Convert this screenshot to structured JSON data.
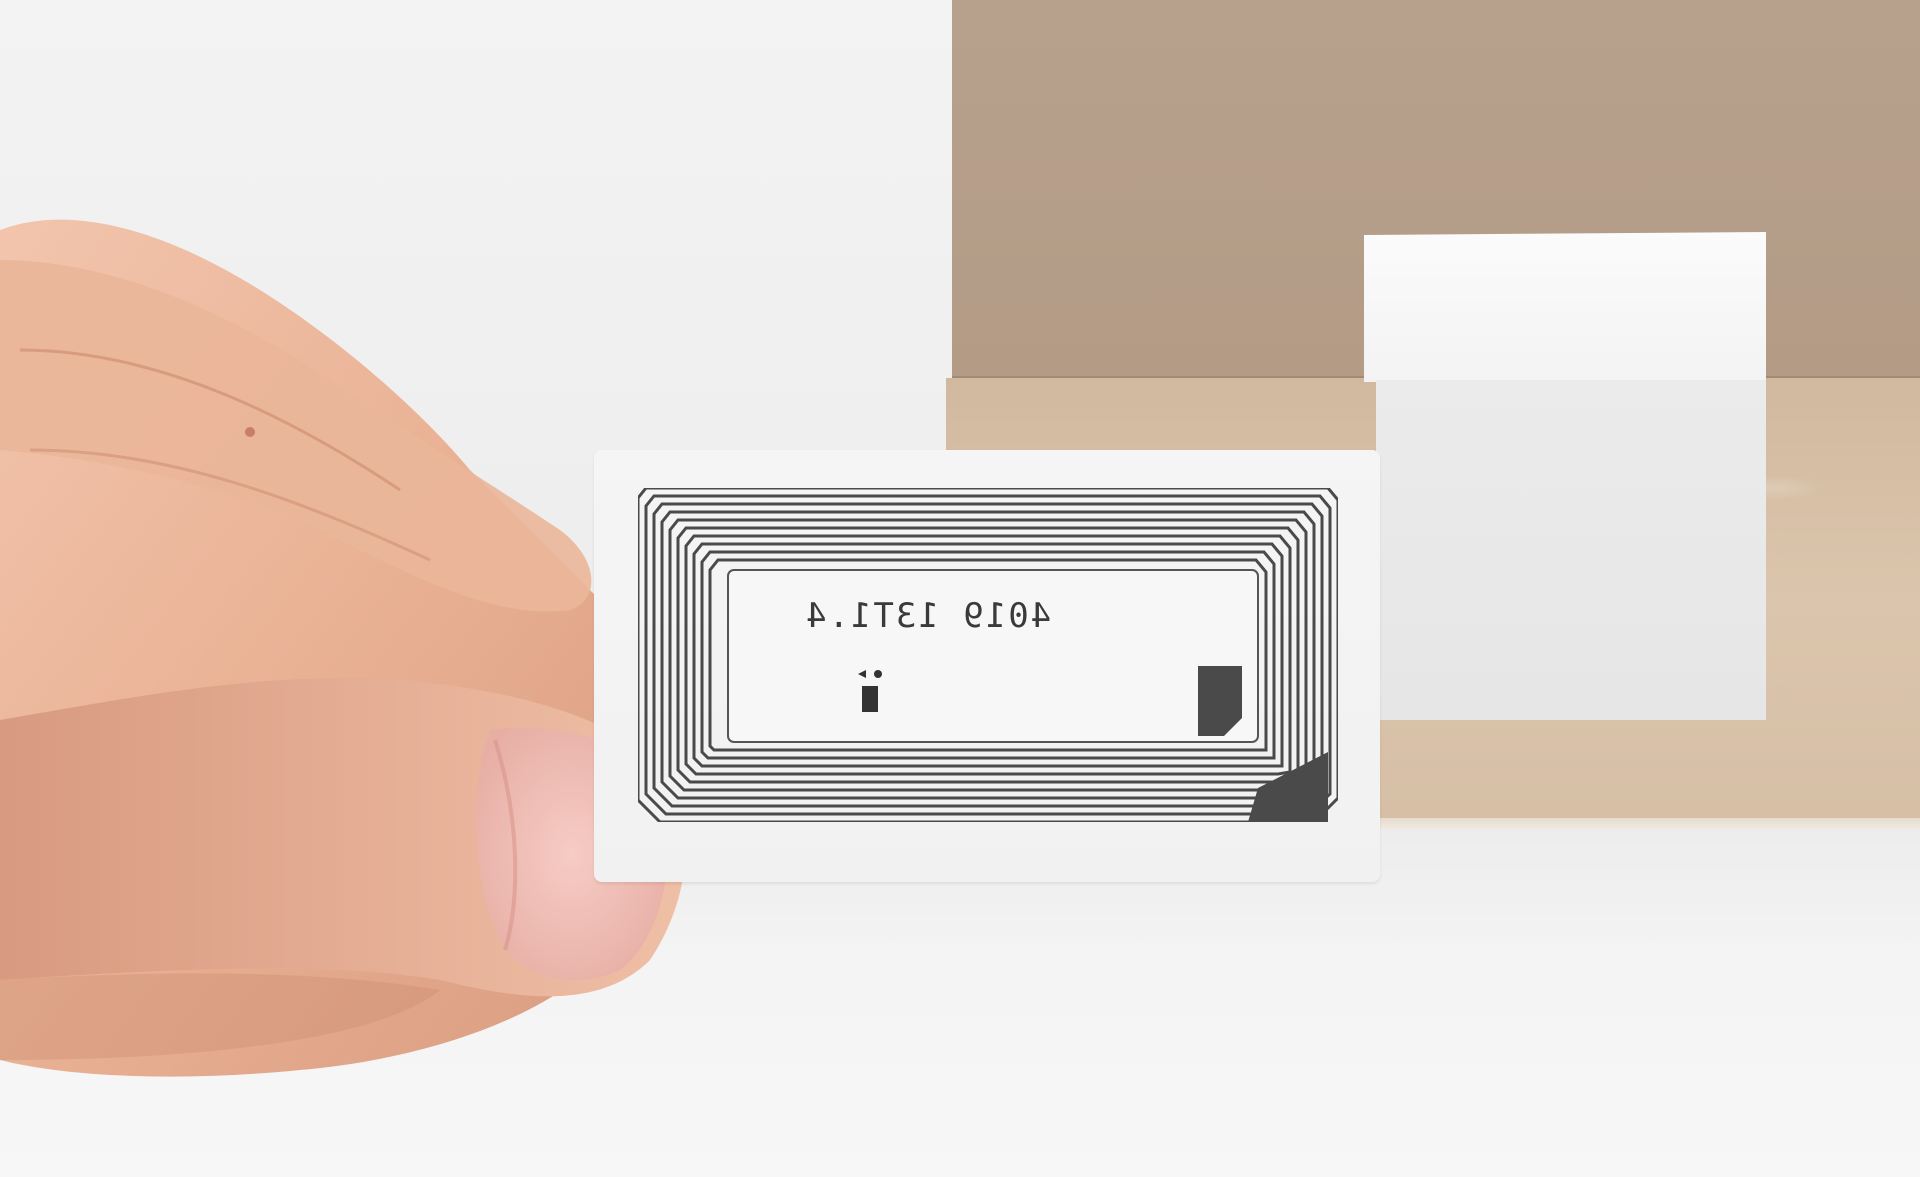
{
  "scene": {
    "description_colors": {
      "background": "#f0f0f0",
      "box_top": "#b59e89",
      "box_side": "#d8c1a8",
      "tag": "#f3f3f3",
      "antenna": "#4a4a4a"
    }
  },
  "tag": {
    "code": "4019 13T1.4"
  }
}
